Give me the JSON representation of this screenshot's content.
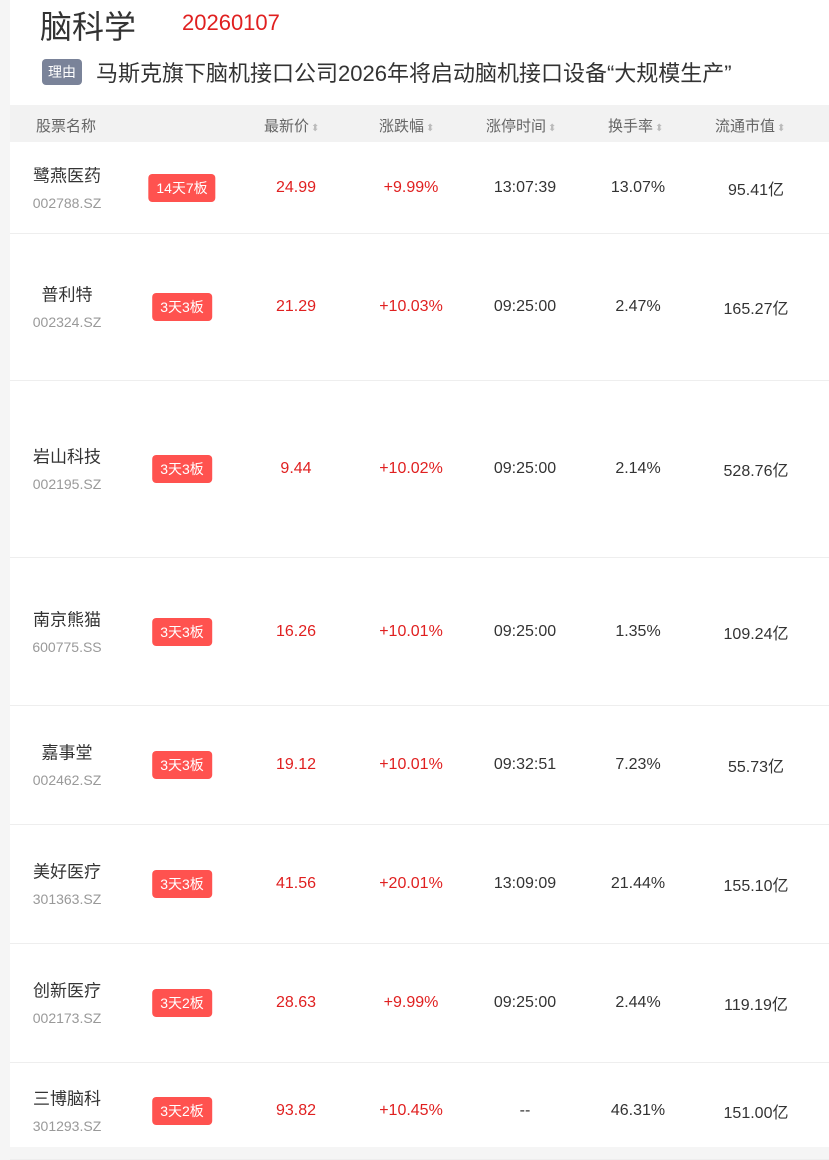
{
  "header": {
    "title": "脑科学",
    "date": "20260107",
    "reason_tag": "理由",
    "reason": "马斯克旗下脑机接口公司2026年将启动脑机接口设备“大规模生产”"
  },
  "columns": [
    "股票名称",
    "最新价",
    "涨跌幅",
    "涨停时间",
    "换手率",
    "流通市值"
  ],
  "sort_icon": "sort-updown-icon",
  "colors": {
    "up": "#e02020",
    "badge": "#ff524f",
    "tag": "#7a8399"
  },
  "rows": [
    {
      "name": "鹭燕医药",
      "code": "002788.SZ",
      "badge": "14天7板",
      "price": "24.99",
      "change": "+9.99%",
      "time": "13:07:39",
      "turnover": "13.07%",
      "cap": "95.41亿"
    },
    {
      "name": "普利特",
      "code": "002324.SZ",
      "badge": "3天3板",
      "price": "21.29",
      "change": "+10.03%",
      "time": "09:25:00",
      "turnover": "2.47%",
      "cap": "165.27亿"
    },
    {
      "name": "岩山科技",
      "code": "002195.SZ",
      "badge": "3天3板",
      "price": "9.44",
      "change": "+10.02%",
      "time": "09:25:00",
      "turnover": "2.14%",
      "cap": "528.76亿"
    },
    {
      "name": "南京熊猫",
      "code": "600775.SS",
      "badge": "3天3板",
      "price": "16.26",
      "change": "+10.01%",
      "time": "09:25:00",
      "turnover": "1.35%",
      "cap": "109.24亿"
    },
    {
      "name": "嘉事堂",
      "code": "002462.SZ",
      "badge": "3天3板",
      "price": "19.12",
      "change": "+10.01%",
      "time": "09:32:51",
      "turnover": "7.23%",
      "cap": "55.73亿"
    },
    {
      "name": "美好医疗",
      "code": "301363.SZ",
      "badge": "3天3板",
      "price": "41.56",
      "change": "+20.01%",
      "time": "13:09:09",
      "turnover": "21.44%",
      "cap": "155.10亿"
    },
    {
      "name": "创新医疗",
      "code": "002173.SZ",
      "badge": "3天2板",
      "price": "28.63",
      "change": "+9.99%",
      "time": "09:25:00",
      "turnover": "2.44%",
      "cap": "119.19亿"
    },
    {
      "name": "三博脑科",
      "code": "301293.SZ",
      "badge": "3天2板",
      "price": "93.82",
      "change": "+10.45%",
      "time": "--",
      "turnover": "46.31%",
      "cap": "151.00亿"
    }
  ]
}
